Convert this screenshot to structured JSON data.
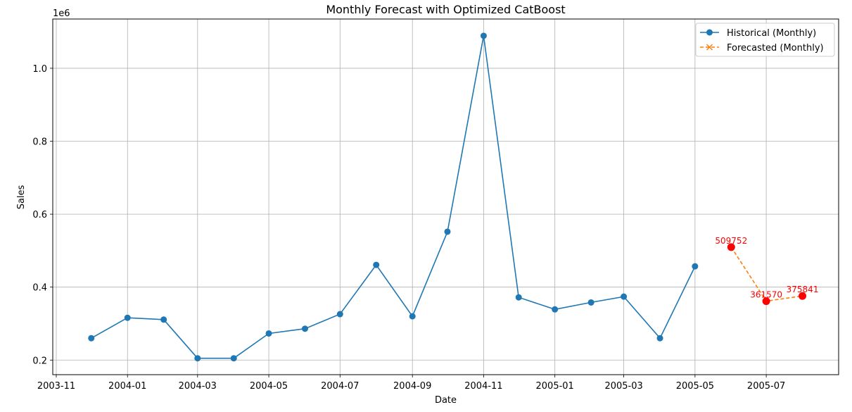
{
  "chart_data": {
    "type": "line",
    "title": "Monthly Forecast with Optimized CatBoost",
    "xlabel": "Date",
    "ylabel": "Sales",
    "y_offset_label": "1e6",
    "y_scale": 1000000,
    "xlim": [
      "2003-10-29",
      "2005-09-01"
    ],
    "ylim": [
      160000,
      1135000
    ],
    "grid": true,
    "legend_position": "upper-right",
    "x_ticks": [
      "2003-11",
      "2004-01",
      "2004-03",
      "2004-05",
      "2004-07",
      "2004-09",
      "2004-11",
      "2005-01",
      "2005-03",
      "2005-05",
      "2005-07"
    ],
    "y_ticks": [
      200000,
      400000,
      600000,
      800000,
      1000000
    ],
    "y_tick_labels": [
      "0.2",
      "0.4",
      "0.6",
      "0.8",
      "1.0"
    ],
    "series": [
      {
        "name": "Historical (Monthly)",
        "color": "#1f77b4",
        "style": "solid",
        "marker": "circle",
        "x": [
          "2003-12-01",
          "2004-01-01",
          "2004-02-01",
          "2004-03-01",
          "2004-04-01",
          "2004-05-01",
          "2004-06-01",
          "2004-07-01",
          "2004-08-01",
          "2004-09-01",
          "2004-10-01",
          "2004-11-01",
          "2004-12-01",
          "2005-01-01",
          "2005-02-01",
          "2005-03-01",
          "2005-04-01",
          "2005-05-01"
        ],
        "values": [
          260000,
          316000,
          311000,
          205000,
          205000,
          273000,
          286000,
          326000,
          461000,
          320000,
          552000,
          1089000,
          372000,
          339000,
          358000,
          374000,
          260000,
          457000
        ]
      },
      {
        "name": "Forecasted (Monthly)",
        "color": "#ff7f0e",
        "style": "dashed",
        "marker": "x",
        "x": [
          "2005-06-01",
          "2005-07-01",
          "2005-08-01"
        ],
        "values": [
          509752,
          361570,
          375841
        ]
      }
    ],
    "annotations": [
      {
        "x": "2005-06-01",
        "y": 509752,
        "text": "509752",
        "color": "#ff0000"
      },
      {
        "x": "2005-07-01",
        "y": 361570,
        "text": "361570",
        "color": "#ff0000"
      },
      {
        "x": "2005-08-01",
        "y": 375841,
        "text": "375841",
        "color": "#ff0000"
      }
    ]
  }
}
